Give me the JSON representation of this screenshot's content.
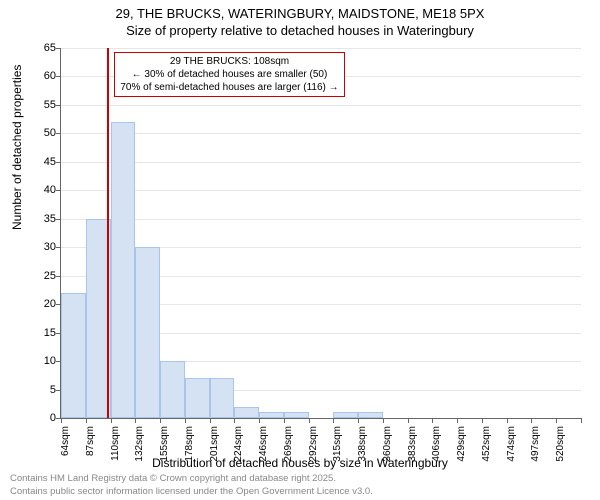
{
  "title_line1": "29, THE BRUCKS, WATERINGBURY, MAIDSTONE, ME18 5PX",
  "title_line2": "Size of property relative to detached houses in Wateringbury",
  "y_axis_label": "Number of detached properties",
  "x_axis_label": "Distribution of detached houses by size in Wateringbury",
  "footer_line1": "Contains HM Land Registry data © Crown copyright and database right 2025.",
  "footer_line2": "Contains public sector information licensed under the Open Government Licence v3.0.",
  "annotation": {
    "title": "29 THE BRUCKS: 108sqm",
    "line1": "← 30% of detached houses are smaller (50)",
    "line2": "70% of semi-detached houses are larger (116) →"
  },
  "chart": {
    "type": "histogram",
    "ylim": [
      0,
      65
    ],
    "ytick_step": 5,
    "bar_fill": "#d4e2f4",
    "bar_stroke": "#a9c5e8",
    "grid_color": "#e6e6e6",
    "marker_color": "#cc0000",
    "marker_x": 108,
    "x_bin_start": 64,
    "x_bin_width": 23,
    "n_bins": 21,
    "values": [
      22,
      35,
      52,
      30,
      10,
      7,
      7,
      2,
      1,
      1,
      0,
      1,
      1,
      0,
      0,
      0,
      0,
      0,
      0,
      0,
      0
    ],
    "x_labels": [
      "64sqm",
      "87sqm",
      "110sqm",
      "132sqm",
      "155sqm",
      "178sqm",
      "201sqm",
      "224sqm",
      "246sqm",
      "269sqm",
      "292sqm",
      "315sqm",
      "338sqm",
      "360sqm",
      "383sqm",
      "406sqm",
      "429sqm",
      "452sqm",
      "474sqm",
      "497sqm",
      "520sqm"
    ],
    "annotation_box_color": "#cc0000"
  }
}
